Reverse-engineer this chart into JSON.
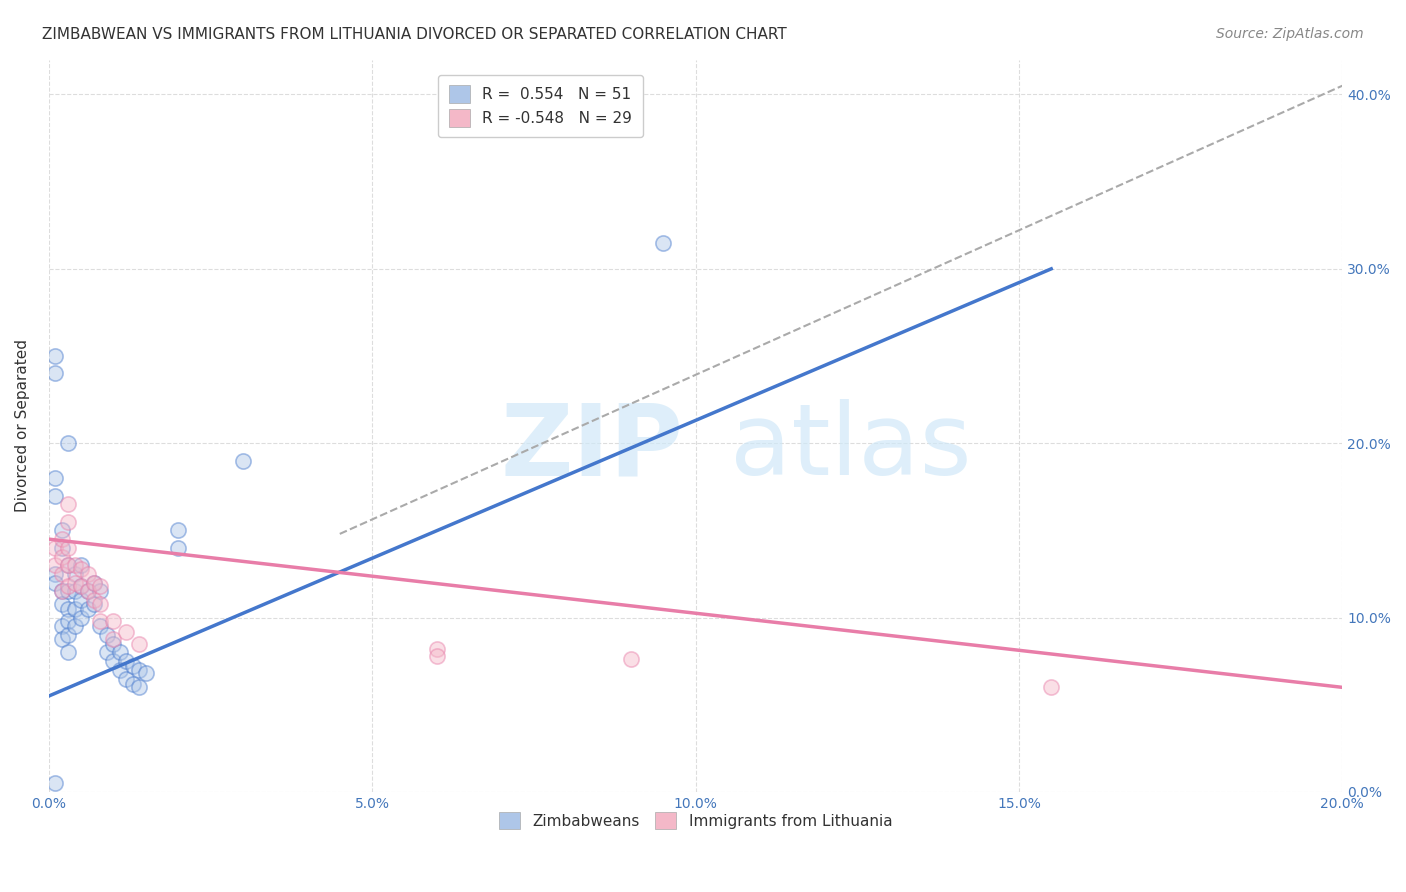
{
  "title": "ZIMBABWEAN VS IMMIGRANTS FROM LITHUANIA DIVORCED OR SEPARATED CORRELATION CHART",
  "source": "Source: ZipAtlas.com",
  "ylabel": "Divorced or Separated",
  "xlim": [
    0.0,
    0.2
  ],
  "ylim": [
    0.0,
    0.42
  ],
  "xticks": [
    0.0,
    0.05,
    0.1,
    0.15,
    0.2
  ],
  "yticks": [
    0.0,
    0.1,
    0.2,
    0.3,
    0.4
  ],
  "blue_scatter": [
    [
      0.001,
      0.125
    ],
    [
      0.001,
      0.12
    ],
    [
      0.001,
      0.17
    ],
    [
      0.001,
      0.18
    ],
    [
      0.002,
      0.14
    ],
    [
      0.002,
      0.15
    ],
    [
      0.002,
      0.115
    ],
    [
      0.002,
      0.108
    ],
    [
      0.002,
      0.095
    ],
    [
      0.002,
      0.088
    ],
    [
      0.003,
      0.13
    ],
    [
      0.003,
      0.115
    ],
    [
      0.003,
      0.105
    ],
    [
      0.003,
      0.098
    ],
    [
      0.003,
      0.09
    ],
    [
      0.003,
      0.08
    ],
    [
      0.004,
      0.125
    ],
    [
      0.004,
      0.115
    ],
    [
      0.004,
      0.105
    ],
    [
      0.004,
      0.095
    ],
    [
      0.005,
      0.13
    ],
    [
      0.005,
      0.118
    ],
    [
      0.005,
      0.11
    ],
    [
      0.005,
      0.1
    ],
    [
      0.006,
      0.115
    ],
    [
      0.006,
      0.105
    ],
    [
      0.007,
      0.12
    ],
    [
      0.007,
      0.108
    ],
    [
      0.008,
      0.115
    ],
    [
      0.008,
      0.095
    ],
    [
      0.009,
      0.09
    ],
    [
      0.009,
      0.08
    ],
    [
      0.01,
      0.085
    ],
    [
      0.01,
      0.075
    ],
    [
      0.011,
      0.08
    ],
    [
      0.011,
      0.07
    ],
    [
      0.012,
      0.075
    ],
    [
      0.012,
      0.065
    ],
    [
      0.013,
      0.072
    ],
    [
      0.013,
      0.062
    ],
    [
      0.014,
      0.07
    ],
    [
      0.014,
      0.06
    ],
    [
      0.015,
      0.068
    ],
    [
      0.001,
      0.24
    ],
    [
      0.001,
      0.25
    ],
    [
      0.003,
      0.2
    ],
    [
      0.03,
      0.19
    ],
    [
      0.095,
      0.315
    ],
    [
      0.001,
      0.005
    ],
    [
      0.02,
      0.15
    ],
    [
      0.02,
      0.14
    ]
  ],
  "pink_scatter": [
    [
      0.001,
      0.14
    ],
    [
      0.001,
      0.13
    ],
    [
      0.002,
      0.145
    ],
    [
      0.002,
      0.135
    ],
    [
      0.002,
      0.125
    ],
    [
      0.002,
      0.115
    ],
    [
      0.003,
      0.155
    ],
    [
      0.003,
      0.14
    ],
    [
      0.003,
      0.13
    ],
    [
      0.003,
      0.118
    ],
    [
      0.004,
      0.13
    ],
    [
      0.004,
      0.12
    ],
    [
      0.005,
      0.128
    ],
    [
      0.005,
      0.118
    ],
    [
      0.006,
      0.125
    ],
    [
      0.006,
      0.115
    ],
    [
      0.007,
      0.12
    ],
    [
      0.007,
      0.11
    ],
    [
      0.008,
      0.118
    ],
    [
      0.008,
      0.108
    ],
    [
      0.008,
      0.098
    ],
    [
      0.01,
      0.098
    ],
    [
      0.01,
      0.088
    ],
    [
      0.012,
      0.092
    ],
    [
      0.014,
      0.085
    ],
    [
      0.003,
      0.165
    ],
    [
      0.06,
      0.082
    ],
    [
      0.06,
      0.078
    ],
    [
      0.155,
      0.06
    ],
    [
      0.09,
      0.076
    ]
  ],
  "blue_line_x": [
    0.0,
    0.155
  ],
  "blue_line_y": [
    0.055,
    0.3
  ],
  "blue_line_color": "#4477cc",
  "pink_line_x": [
    0.0,
    0.2
  ],
  "pink_line_y": [
    0.145,
    0.06
  ],
  "pink_line_color": "#e87da8",
  "gray_line_x": [
    0.045,
    0.2
  ],
  "gray_line_y": [
    0.148,
    0.405
  ],
  "title_fontsize": 11,
  "source_fontsize": 10,
  "label_fontsize": 11
}
